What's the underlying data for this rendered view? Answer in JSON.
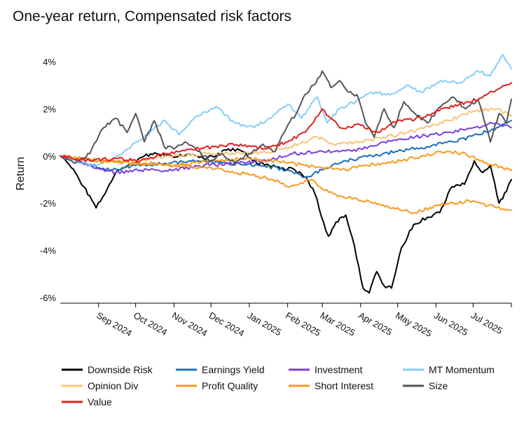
{
  "chart_data": {
    "type": "line",
    "title": "One-year return, Compensated risk factors",
    "ylabel": "Return",
    "xlabel": "",
    "ylim": [
      -6.2,
      4.5
    ],
    "xlim": [
      "2024-08-01",
      "2025-08-01"
    ],
    "y_ticks": [
      {
        "value": 4,
        "label": "4%"
      },
      {
        "value": 2,
        "label": "2%"
      },
      {
        "value": 0,
        "label": "0%"
      },
      {
        "value": -2,
        "label": "-2%"
      },
      {
        "value": -4,
        "label": "-4%"
      },
      {
        "value": -6,
        "label": "-6%"
      }
    ],
    "x_ticks": [
      {
        "date": "2024-09-01",
        "label": "Sep 2024"
      },
      {
        "date": "2024-10-01",
        "label": "Oct 2024"
      },
      {
        "date": "2024-11-01",
        "label": "Nov 2024"
      },
      {
        "date": "2024-12-01",
        "label": "Dec 2024"
      },
      {
        "date": "2025-01-01",
        "label": "Jan 2025"
      },
      {
        "date": "2025-02-01",
        "label": "Feb 2025"
      },
      {
        "date": "2025-03-01",
        "label": "Mar 2025"
      },
      {
        "date": "2025-04-01",
        "label": "Apr 2025"
      },
      {
        "date": "2025-05-01",
        "label": "May 2025"
      },
      {
        "date": "2025-06-01",
        "label": "Jun 2025"
      },
      {
        "date": "2025-07-01",
        "label": "Jul 2025"
      },
      {
        "date": "2025-08-01",
        "label": ""
      }
    ],
    "grid": false,
    "legend_position": "bottom",
    "series": [
      {
        "name": "Downside Risk",
        "color": "#000000",
        "x": [
          "2024-08-01",
          "2024-08-10",
          "2024-08-20",
          "2024-08-30",
          "2024-09-08",
          "2024-09-15",
          "2024-09-22",
          "2024-10-01",
          "2024-10-08",
          "2024-10-18",
          "2024-10-28",
          "2024-11-08",
          "2024-11-16",
          "2024-11-25",
          "2024-12-05",
          "2024-12-15",
          "2024-12-26",
          "2025-01-07",
          "2025-01-17",
          "2025-01-28",
          "2025-02-07",
          "2025-02-16",
          "2025-02-23",
          "2025-03-02",
          "2025-03-06",
          "2025-03-12",
          "2025-03-20",
          "2025-03-27",
          "2025-04-03",
          "2025-04-08",
          "2025-04-14",
          "2025-04-20",
          "2025-04-26",
          "2025-05-04",
          "2025-05-14",
          "2025-05-25",
          "2025-06-04",
          "2025-06-14",
          "2025-06-24",
          "2025-07-02",
          "2025-07-09",
          "2025-07-15",
          "2025-07-22",
          "2025-07-28",
          "2025-08-01"
        ],
        "y": [
          0.0,
          -0.5,
          -1.3,
          -2.2,
          -1.4,
          -0.7,
          -0.5,
          -0.3,
          0.0,
          0.1,
          0.0,
          0.0,
          0.1,
          -0.1,
          0.0,
          0.3,
          0.2,
          -0.3,
          -0.4,
          -0.5,
          -0.6,
          -0.9,
          -1.6,
          -2.8,
          -3.4,
          -2.8,
          -2.5,
          -3.8,
          -5.6,
          -5.8,
          -4.9,
          -5.5,
          -5.6,
          -3.9,
          -2.9,
          -2.6,
          -2.4,
          -1.3,
          -1.2,
          -0.2,
          -0.7,
          -0.4,
          -2.0,
          -1.5,
          -1.0
        ]
      },
      {
        "name": "Earnings Yield",
        "color": "#1f6fb5",
        "x": [
          "2024-08-01",
          "2024-08-20",
          "2024-09-10",
          "2024-10-01",
          "2024-10-25",
          "2024-11-20",
          "2024-12-15",
          "2025-01-10",
          "2025-02-01",
          "2025-02-15",
          "2025-03-01",
          "2025-03-20",
          "2025-04-10",
          "2025-05-01",
          "2025-05-25",
          "2025-06-15",
          "2025-07-05",
          "2025-07-20",
          "2025-08-01"
        ],
        "y": [
          0.0,
          -0.3,
          -0.6,
          -0.4,
          -0.3,
          -0.2,
          -0.3,
          -0.4,
          -0.6,
          -0.9,
          -0.6,
          -0.2,
          0.0,
          0.2,
          0.4,
          0.6,
          0.9,
          1.2,
          1.5
        ]
      },
      {
        "name": "Investment",
        "color": "#7a3fe0",
        "x": [
          "2024-08-01",
          "2024-08-25",
          "2024-09-15",
          "2024-10-05",
          "2024-11-01",
          "2024-11-25",
          "2024-12-20",
          "2025-01-15",
          "2025-02-05",
          "2025-03-01",
          "2025-03-25",
          "2025-04-20",
          "2025-05-15",
          "2025-06-10",
          "2025-07-01",
          "2025-07-20",
          "2025-08-01"
        ],
        "y": [
          0.0,
          -0.4,
          -0.7,
          -0.6,
          -0.6,
          -0.4,
          -0.3,
          -0.2,
          0.1,
          0.2,
          0.2,
          0.6,
          0.8,
          1.0,
          1.2,
          1.4,
          1.2
        ]
      },
      {
        "name": "MT Momentum",
        "color": "#87cdf5",
        "x": [
          "2024-08-01",
          "2024-08-25",
          "2024-09-10",
          "2024-09-25",
          "2024-10-10",
          "2024-10-25",
          "2024-11-05",
          "2024-11-20",
          "2024-12-05",
          "2024-12-20",
          "2025-01-05",
          "2025-01-20",
          "2025-02-01",
          "2025-02-12",
          "2025-02-25",
          "2025-03-05",
          "2025-03-15",
          "2025-03-28",
          "2025-04-10",
          "2025-04-25",
          "2025-05-08",
          "2025-05-20",
          "2025-06-05",
          "2025-06-20",
          "2025-07-05",
          "2025-07-15",
          "2025-07-25",
          "2025-08-01"
        ],
        "y": [
          0.0,
          -0.4,
          -0.2,
          0.3,
          0.9,
          1.5,
          0.9,
          1.7,
          2.1,
          1.4,
          1.2,
          1.7,
          2.2,
          1.6,
          2.5,
          1.4,
          2.0,
          2.3,
          2.7,
          2.6,
          3.0,
          2.7,
          3.2,
          3.1,
          3.6,
          3.4,
          4.3,
          3.7
        ]
      },
      {
        "name": "Opinion Div",
        "color": "#f7c37a",
        "x": [
          "2024-08-01",
          "2024-09-01",
          "2024-10-01",
          "2024-11-01",
          "2024-12-01",
          "2025-01-01",
          "2025-01-20",
          "2025-02-10",
          "2025-02-25",
          "2025-03-10",
          "2025-04-01",
          "2025-05-01",
          "2025-06-01",
          "2025-07-01",
          "2025-07-20",
          "2025-08-01"
        ],
        "y": [
          0.0,
          -0.2,
          -0.2,
          0.0,
          0.1,
          0.1,
          0.2,
          0.5,
          0.8,
          0.5,
          0.6,
          0.9,
          1.3,
          1.9,
          2.0,
          1.7
        ]
      },
      {
        "name": "Profit Quality",
        "color": "#f79a1e",
        "x": [
          "2024-08-01",
          "2024-09-01",
          "2024-10-01",
          "2024-11-01",
          "2024-12-01",
          "2025-01-01",
          "2025-01-20",
          "2025-02-01",
          "2025-02-10",
          "2025-02-20",
          "2025-03-01",
          "2025-03-10",
          "2025-04-01",
          "2025-05-01",
          "2025-05-15",
          "2025-06-01",
          "2025-06-15",
          "2025-07-01",
          "2025-07-20",
          "2025-08-01"
        ],
        "y": [
          0.0,
          -0.2,
          -0.3,
          -0.4,
          -0.5,
          -0.8,
          -1.0,
          -1.3,
          -1.2,
          -1.0,
          -1.4,
          -1.6,
          -1.9,
          -2.2,
          -2.4,
          -2.1,
          -2.0,
          -1.9,
          -2.2,
          -2.3
        ]
      },
      {
        "name": "Short Interest",
        "color": "#f79a1e",
        "x": [
          "2024-08-01",
          "2024-09-01",
          "2024-10-01",
          "2024-11-01",
          "2024-12-01",
          "2025-01-01",
          "2025-02-01",
          "2025-02-15",
          "2025-03-01",
          "2025-03-20",
          "2025-04-05",
          "2025-04-25",
          "2025-05-20",
          "2025-06-10",
          "2025-06-25",
          "2025-07-10",
          "2025-07-25",
          "2025-08-01"
        ],
        "y": [
          0.0,
          -0.2,
          -0.3,
          -0.4,
          -0.2,
          -0.1,
          -0.3,
          -0.4,
          -0.5,
          -0.6,
          -0.4,
          -0.3,
          0.0,
          0.2,
          0.1,
          -0.3,
          -0.5,
          -0.6
        ]
      },
      {
        "name": "Size",
        "color": "#555555",
        "x": [
          "2024-08-01",
          "2024-08-12",
          "2024-08-25",
          "2024-09-05",
          "2024-09-15",
          "2024-09-24",
          "2024-10-01",
          "2024-10-08",
          "2024-10-16",
          "2024-10-24",
          "2024-11-01",
          "2024-11-10",
          "2024-11-20",
          "2024-12-01",
          "2024-12-10",
          "2024-12-20",
          "2025-01-01",
          "2025-01-12",
          "2025-01-22",
          "2025-02-01",
          "2025-02-08",
          "2025-02-15",
          "2025-02-22",
          "2025-03-01",
          "2025-03-08",
          "2025-03-15",
          "2025-03-22",
          "2025-03-29",
          "2025-04-05",
          "2025-04-12",
          "2025-04-20",
          "2025-04-28",
          "2025-05-06",
          "2025-05-15",
          "2025-05-25",
          "2025-06-05",
          "2025-06-15",
          "2025-06-25",
          "2025-07-05",
          "2025-07-15",
          "2025-07-22",
          "2025-07-28",
          "2025-08-01"
        ],
        "y": [
          0.0,
          -0.3,
          0.1,
          1.2,
          1.6,
          1.0,
          1.8,
          0.6,
          1.5,
          0.4,
          0.3,
          0.6,
          0.2,
          -0.2,
          0.1,
          -0.3,
          0.1,
          0.5,
          0.2,
          1.3,
          1.8,
          2.6,
          3.0,
          3.6,
          2.9,
          3.2,
          2.7,
          2.6,
          1.4,
          0.8,
          2.0,
          1.2,
          2.3,
          1.8,
          1.4,
          2.1,
          2.5,
          2.0,
          2.4,
          0.6,
          1.8,
          1.4,
          2.4
        ]
      },
      {
        "name": "Value",
        "color": "#e31e1e",
        "x": [
          "2024-08-01",
          "2024-08-25",
          "2024-09-15",
          "2024-10-05",
          "2024-10-25",
          "2024-11-15",
          "2024-12-05",
          "2024-12-25",
          "2025-01-15",
          "2025-02-01",
          "2025-02-15",
          "2025-03-01",
          "2025-03-15",
          "2025-04-01",
          "2025-04-15",
          "2025-05-01",
          "2025-05-20",
          "2025-06-05",
          "2025-06-20",
          "2025-07-05",
          "2025-07-20",
          "2025-08-01"
        ],
        "y": [
          0.0,
          -0.2,
          -0.1,
          -0.2,
          0.1,
          0.3,
          0.4,
          0.5,
          0.3,
          0.6,
          1.0,
          2.0,
          1.2,
          1.3,
          1.0,
          1.5,
          1.6,
          2.0,
          2.2,
          2.4,
          2.8,
          3.1
        ]
      }
    ]
  }
}
